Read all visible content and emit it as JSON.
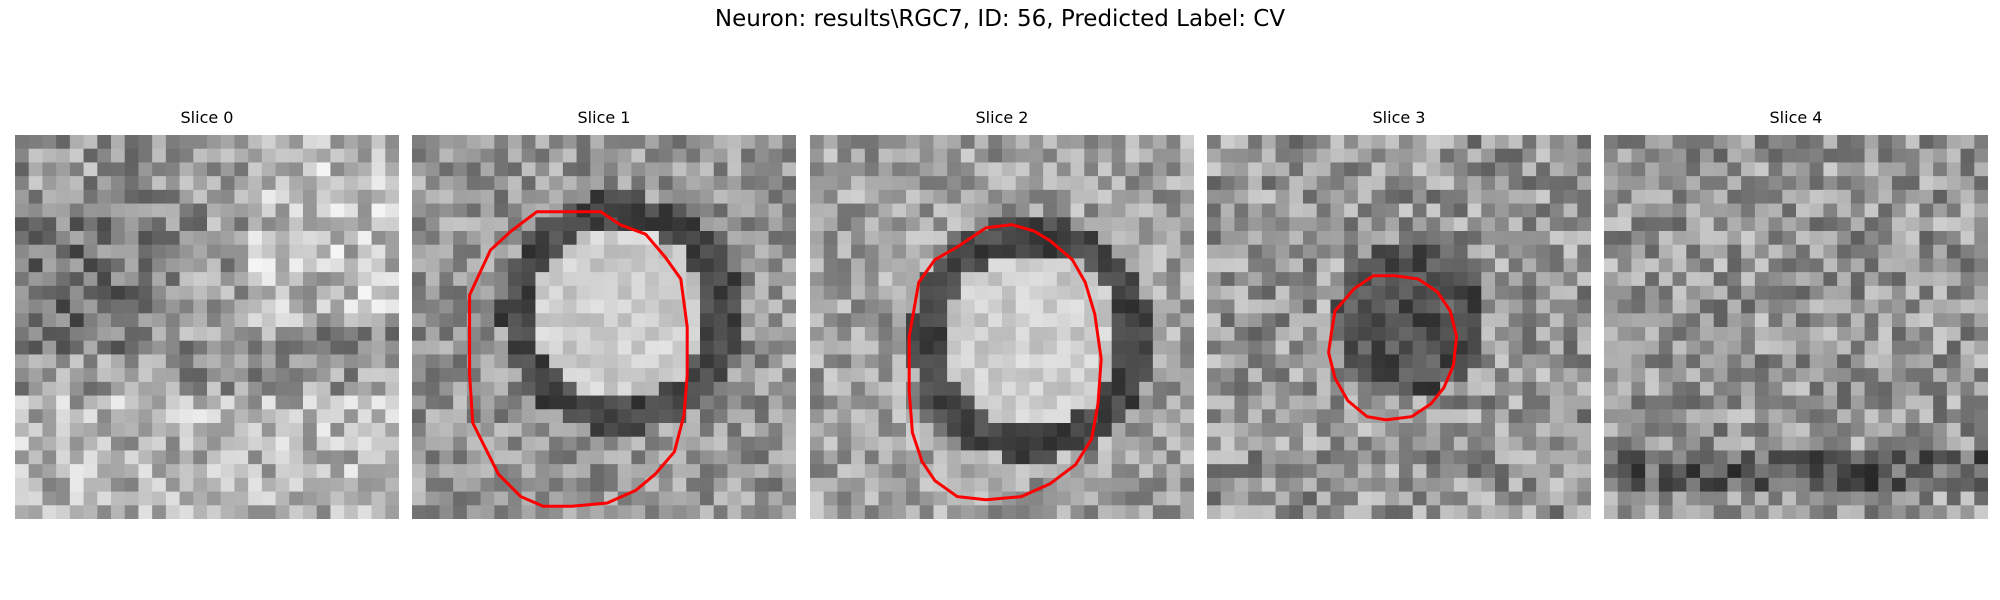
{
  "figure": {
    "title": "Neuron: results\\RGC7, ID: 56, Predicted Label: CV",
    "panels": [
      {
        "title": "Slice 0",
        "scene": "noise-texture",
        "contour": false,
        "contour_color": "#ff0000"
      },
      {
        "title": "Slice 1",
        "scene": "bright-ring",
        "contour": true,
        "contour_color": "#ff0000"
      },
      {
        "title": "Slice 2",
        "scene": "bright-ring",
        "contour": true,
        "contour_color": "#ff0000"
      },
      {
        "title": "Slice 3",
        "scene": "dark-blob",
        "contour": true,
        "contour_color": "#ff0000"
      },
      {
        "title": "Slice 4",
        "scene": "noise-texture",
        "contour": false,
        "contour_color": "#ff0000"
      }
    ]
  }
}
